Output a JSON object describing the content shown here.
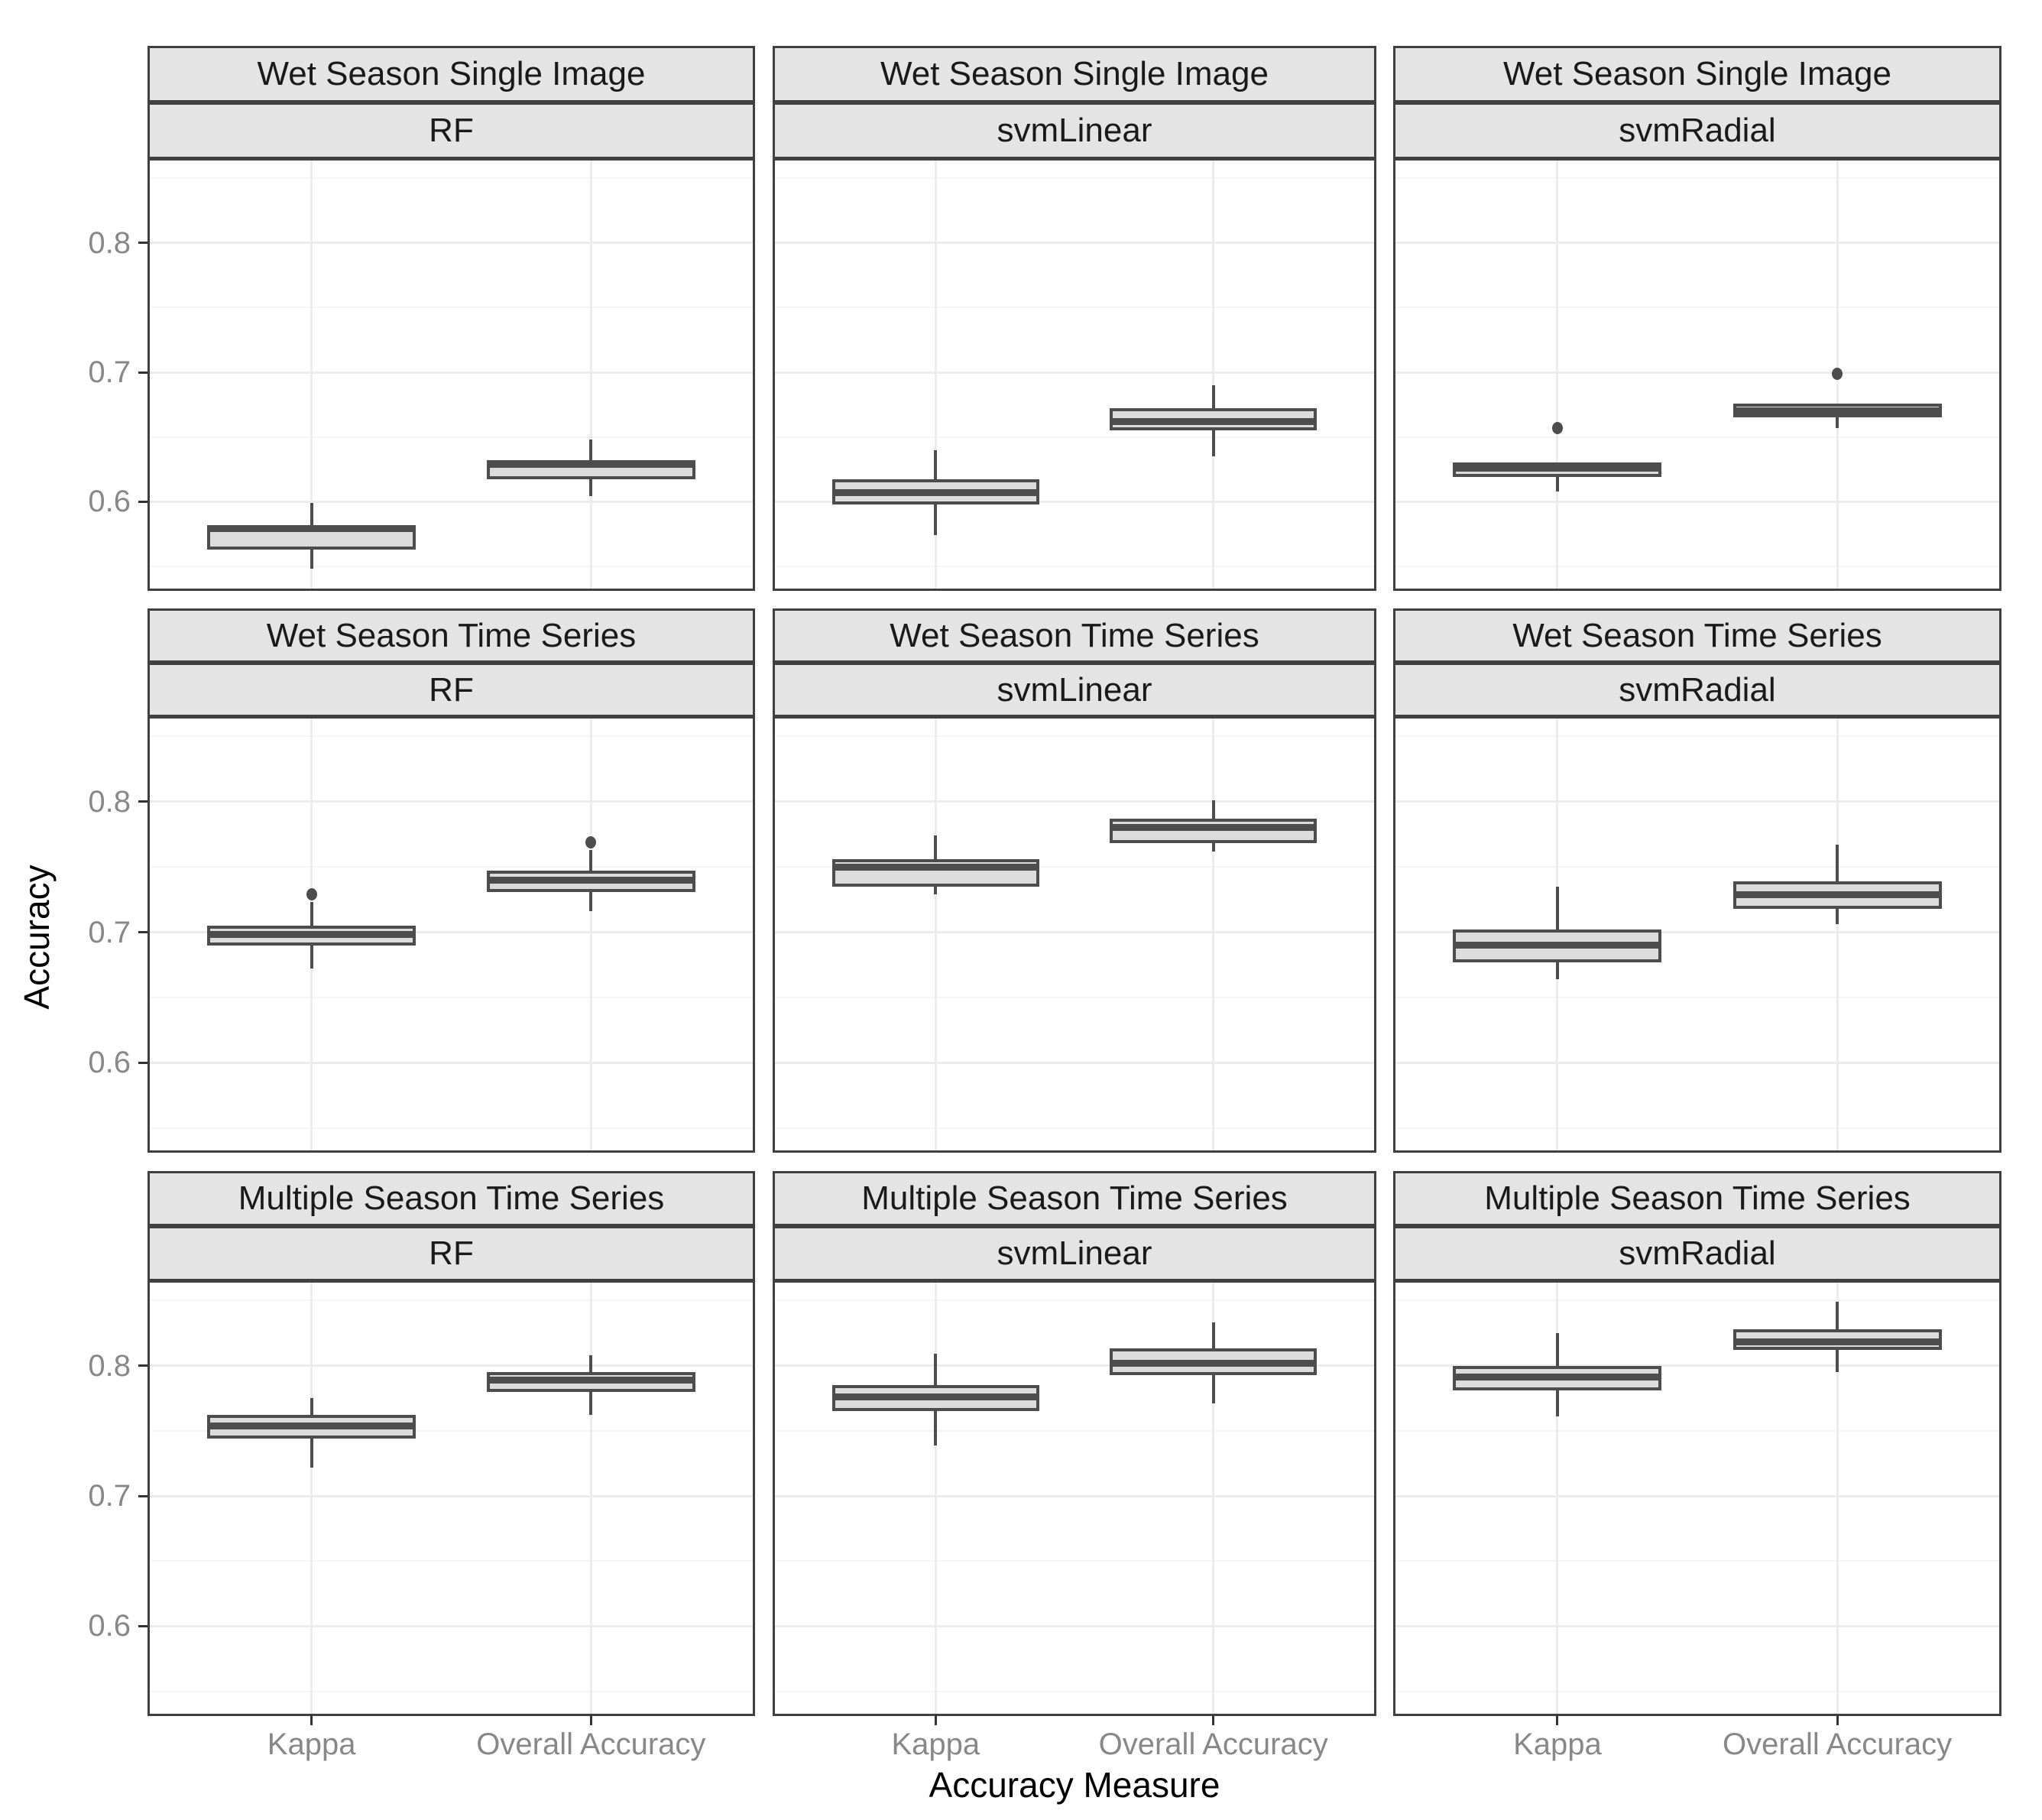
{
  "axes": {
    "y_title": "Accuracy",
    "x_title": "Accuracy Measure",
    "y_major_ticks": [
      {
        "value": 0.8,
        "label": "0.8"
      },
      {
        "value": 0.7,
        "label": "0.7"
      },
      {
        "value": 0.6,
        "label": "0.6"
      }
    ],
    "y_minor_ticks": [
      0.85,
      0.75,
      0.65,
      0.55
    ],
    "y_domain": [
      0.531,
      0.8655
    ],
    "x_categories": [
      "Kappa",
      "Overall Accuracy"
    ]
  },
  "style": {
    "box_stroke": "#4d4d4d",
    "box_fill": "#dcdcdc",
    "strip_fill": "#e4e4e4",
    "panel_border": "#404040",
    "grid_major": "#ececec",
    "grid_minor": "#f5f5f5",
    "tick_text": "#888888",
    "strip_text": "#1a1a1a",
    "title_text": "#000000"
  },
  "chart_data": {
    "type": "boxplot",
    "title": "",
    "xlabel": "Accuracy Measure",
    "ylabel": "Accuracy",
    "facet_rows": [
      "Wet Season Single Image",
      "Wet Season Time Series",
      "Multiple Season Time Series"
    ],
    "facet_cols": [
      "RF",
      "svmLinear",
      "svmRadial"
    ],
    "x_categories": [
      "Kappa",
      "Overall Accuracy"
    ],
    "ylim": [
      0.531,
      0.8655
    ],
    "grid": true,
    "panels": [
      {
        "row": 0,
        "col": 0,
        "dataset": "Wet Season Single Image",
        "classifier": "RF",
        "boxes": [
          {
            "category": "Kappa",
            "whisker_low": 0.548,
            "q1": 0.563,
            "median": 0.579,
            "q3": 0.582,
            "whisker_high": 0.599,
            "outliers": []
          },
          {
            "category": "Overall Accuracy",
            "whisker_low": 0.604,
            "q1": 0.617,
            "median": 0.629,
            "q3": 0.632,
            "whisker_high": 0.648,
            "outliers": []
          }
        ]
      },
      {
        "row": 0,
        "col": 1,
        "dataset": "Wet Season Single Image",
        "classifier": "svmLinear",
        "boxes": [
          {
            "category": "Kappa",
            "whisker_low": 0.574,
            "q1": 0.598,
            "median": 0.607,
            "q3": 0.617,
            "whisker_high": 0.64,
            "outliers": []
          },
          {
            "category": "Overall Accuracy",
            "whisker_low": 0.635,
            "q1": 0.655,
            "median": 0.662,
            "q3": 0.672,
            "whisker_high": 0.69,
            "outliers": []
          }
        ]
      },
      {
        "row": 0,
        "col": 2,
        "dataset": "Wet Season Single Image",
        "classifier": "svmRadial",
        "boxes": [
          {
            "category": "Kappa",
            "whisker_low": 0.608,
            "q1": 0.619,
            "median": 0.626,
            "q3": 0.63,
            "whisker_high": 0.63,
            "outliers": [
              0.657
            ]
          },
          {
            "category": "Overall Accuracy",
            "whisker_low": 0.657,
            "q1": 0.665,
            "median": 0.67,
            "q3": 0.676,
            "whisker_high": 0.676,
            "outliers": [
              0.699
            ]
          }
        ]
      },
      {
        "row": 1,
        "col": 0,
        "dataset": "Wet Season Time Series",
        "classifier": "RF",
        "boxes": [
          {
            "category": "Kappa",
            "whisker_low": 0.672,
            "q1": 0.69,
            "median": 0.698,
            "q3": 0.705,
            "whisker_high": 0.723,
            "outliers": [
              0.729
            ]
          },
          {
            "category": "Overall Accuracy",
            "whisker_low": 0.716,
            "q1": 0.731,
            "median": 0.74,
            "q3": 0.747,
            "whisker_high": 0.763,
            "outliers": [
              0.769
            ]
          }
        ]
      },
      {
        "row": 1,
        "col": 1,
        "dataset": "Wet Season Time Series",
        "classifier": "svmLinear",
        "boxes": [
          {
            "category": "Kappa",
            "whisker_low": 0.729,
            "q1": 0.735,
            "median": 0.75,
            "q3": 0.756,
            "whisker_high": 0.774,
            "outliers": []
          },
          {
            "category": "Overall Accuracy",
            "whisker_low": 0.762,
            "q1": 0.768,
            "median": 0.78,
            "q3": 0.787,
            "whisker_high": 0.801,
            "outliers": []
          }
        ]
      },
      {
        "row": 1,
        "col": 2,
        "dataset": "Wet Season Time Series",
        "classifier": "svmRadial",
        "boxes": [
          {
            "category": "Kappa",
            "whisker_low": 0.664,
            "q1": 0.677,
            "median": 0.69,
            "q3": 0.702,
            "whisker_high": 0.735,
            "outliers": []
          },
          {
            "category": "Overall Accuracy",
            "whisker_low": 0.706,
            "q1": 0.718,
            "median": 0.729,
            "q3": 0.739,
            "whisker_high": 0.767,
            "outliers": []
          }
        ]
      },
      {
        "row": 2,
        "col": 0,
        "dataset": "Multiple Season Time Series",
        "classifier": "RF",
        "boxes": [
          {
            "category": "Kappa",
            "whisker_low": 0.722,
            "q1": 0.744,
            "median": 0.754,
            "q3": 0.762,
            "whisker_high": 0.775,
            "outliers": []
          },
          {
            "category": "Overall Accuracy",
            "whisker_low": 0.762,
            "q1": 0.78,
            "median": 0.789,
            "q3": 0.795,
            "whisker_high": 0.808,
            "outliers": []
          }
        ]
      },
      {
        "row": 2,
        "col": 1,
        "dataset": "Multiple Season Time Series",
        "classifier": "svmLinear",
        "boxes": [
          {
            "category": "Kappa",
            "whisker_low": 0.739,
            "q1": 0.765,
            "median": 0.776,
            "q3": 0.785,
            "whisker_high": 0.809,
            "outliers": []
          },
          {
            "category": "Overall Accuracy",
            "whisker_low": 0.771,
            "q1": 0.793,
            "median": 0.802,
            "q3": 0.813,
            "whisker_high": 0.833,
            "outliers": []
          }
        ]
      },
      {
        "row": 2,
        "col": 2,
        "dataset": "Multiple Season Time Series",
        "classifier": "svmRadial",
        "boxes": [
          {
            "category": "Kappa",
            "whisker_low": 0.761,
            "q1": 0.781,
            "median": 0.791,
            "q3": 0.8,
            "whisker_high": 0.825,
            "outliers": []
          },
          {
            "category": "Overall Accuracy",
            "whisker_low": 0.795,
            "q1": 0.812,
            "median": 0.818,
            "q3": 0.828,
            "whisker_high": 0.849,
            "outliers": []
          }
        ]
      }
    ]
  }
}
